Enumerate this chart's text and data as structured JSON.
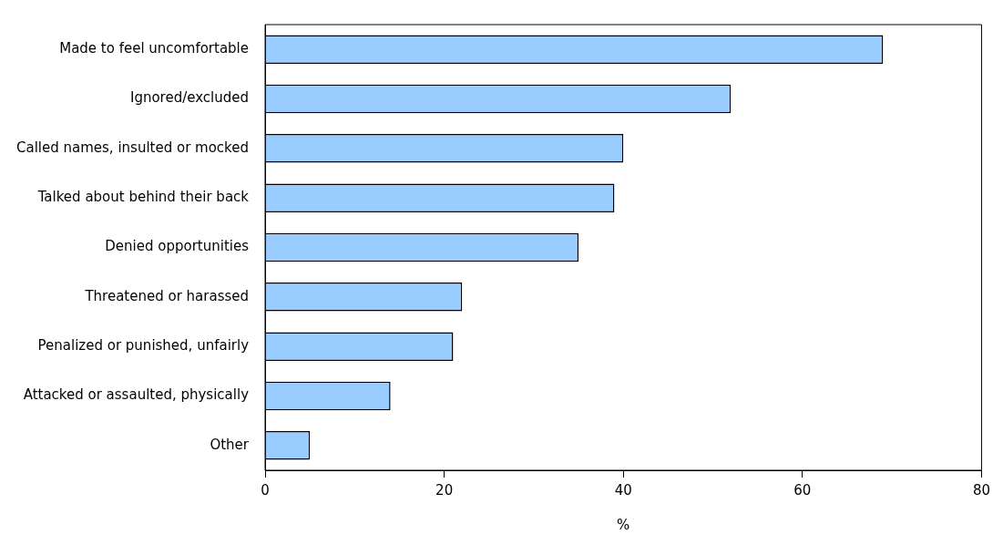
{
  "chart_data": {
    "type": "bar",
    "orientation": "horizontal",
    "xlabel": "%",
    "categories": [
      "Made to feel uncomfortable",
      "Ignored/excluded",
      "Called names, insulted or mocked",
      "Talked about behind their back",
      "Denied opportunities",
      "Threatened or harassed",
      "Penalized or punished, unfairly",
      "Attacked or assaulted, physically",
      "Other"
    ],
    "values": [
      69,
      52,
      40,
      39,
      35,
      22,
      21,
      14,
      5
    ],
    "color": "#99ccff",
    "xlim": [
      0,
      80
    ],
    "xticks": [
      0,
      20,
      40,
      60,
      80
    ],
    "grid": false,
    "legend": false
  }
}
